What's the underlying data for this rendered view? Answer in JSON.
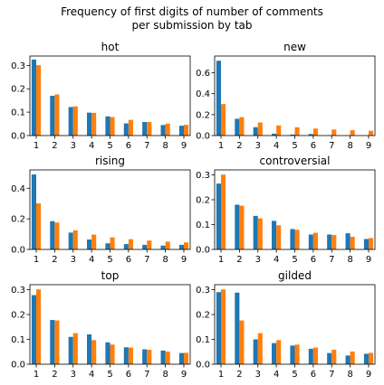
{
  "suptitle": [
    "Frequency of first digits of number of comments",
    "per submission by tab"
  ],
  "colors": {
    "series_a": "#1f77b4",
    "series_b": "#ff7f0e"
  },
  "chart_data": [
    {
      "type": "bar",
      "title": "hot",
      "categories": [
        "1",
        "2",
        "3",
        "4",
        "5",
        "6",
        "7",
        "8",
        "9"
      ],
      "ylim": [
        0,
        0.34
      ],
      "yticks": [
        0.0,
        0.1,
        0.2,
        0.3
      ],
      "series": [
        {
          "values": [
            0.325,
            0.17,
            0.122,
            0.098,
            0.082,
            0.052,
            0.058,
            0.045,
            0.042
          ]
        },
        {
          "values": [
            0.301,
            0.176,
            0.125,
            0.097,
            0.079,
            0.067,
            0.058,
            0.051,
            0.046
          ]
        }
      ]
    },
    {
      "type": "bar",
      "title": "new",
      "categories": [
        "1",
        "2",
        "3",
        "4",
        "5",
        "6",
        "7",
        "8",
        "9"
      ],
      "ylim": [
        0,
        0.76
      ],
      "yticks": [
        0.0,
        0.2,
        0.4,
        0.6
      ],
      "series": [
        {
          "values": [
            0.715,
            0.16,
            0.08,
            0.018,
            0.01,
            0.015,
            0.003,
            0.002,
            0.002
          ]
        },
        {
          "values": [
            0.301,
            0.176,
            0.125,
            0.097,
            0.079,
            0.067,
            0.058,
            0.051,
            0.046
          ]
        }
      ]
    },
    {
      "type": "bar",
      "title": "rising",
      "categories": [
        "1",
        "2",
        "3",
        "4",
        "5",
        "6",
        "7",
        "8",
        "9"
      ],
      "ylim": [
        0,
        0.52
      ],
      "yticks": [
        0.0,
        0.2,
        0.4
      ],
      "series": [
        {
          "values": [
            0.49,
            0.185,
            0.11,
            0.065,
            0.04,
            0.035,
            0.03,
            0.025,
            0.03
          ]
        },
        {
          "values": [
            0.301,
            0.176,
            0.125,
            0.097,
            0.079,
            0.067,
            0.058,
            0.051,
            0.046
          ]
        }
      ]
    },
    {
      "type": "bar",
      "title": "controversial",
      "categories": [
        "1",
        "2",
        "3",
        "4",
        "5",
        "6",
        "7",
        "8",
        "9"
      ],
      "ylim": [
        0,
        0.32
      ],
      "yticks": [
        0.0,
        0.1,
        0.2,
        0.3
      ],
      "series": [
        {
          "values": [
            0.265,
            0.18,
            0.135,
            0.115,
            0.082,
            0.06,
            0.06,
            0.065,
            0.042
          ]
        },
        {
          "values": [
            0.301,
            0.176,
            0.125,
            0.097,
            0.079,
            0.067,
            0.058,
            0.051,
            0.046
          ]
        }
      ]
    },
    {
      "type": "bar",
      "title": "top",
      "categories": [
        "1",
        "2",
        "3",
        "4",
        "5",
        "6",
        "7",
        "8",
        "9"
      ],
      "ylim": [
        0,
        0.32
      ],
      "yticks": [
        0.0,
        0.1,
        0.2,
        0.3
      ],
      "series": [
        {
          "values": [
            0.278,
            0.178,
            0.11,
            0.12,
            0.088,
            0.068,
            0.06,
            0.055,
            0.045
          ]
        },
        {
          "values": [
            0.301,
            0.176,
            0.125,
            0.097,
            0.079,
            0.067,
            0.058,
            0.051,
            0.046
          ]
        }
      ]
    },
    {
      "type": "bar",
      "title": "gilded",
      "categories": [
        "1",
        "2",
        "3",
        "4",
        "5",
        "6",
        "7",
        "8",
        "9"
      ],
      "ylim": [
        0,
        0.32
      ],
      "yticks": [
        0.0,
        0.1,
        0.2,
        0.3
      ],
      "series": [
        {
          "values": [
            0.29,
            0.288,
            0.1,
            0.085,
            0.075,
            0.062,
            0.045,
            0.035,
            0.042
          ]
        },
        {
          "values": [
            0.301,
            0.176,
            0.125,
            0.097,
            0.079,
            0.067,
            0.058,
            0.051,
            0.046
          ]
        }
      ]
    }
  ]
}
